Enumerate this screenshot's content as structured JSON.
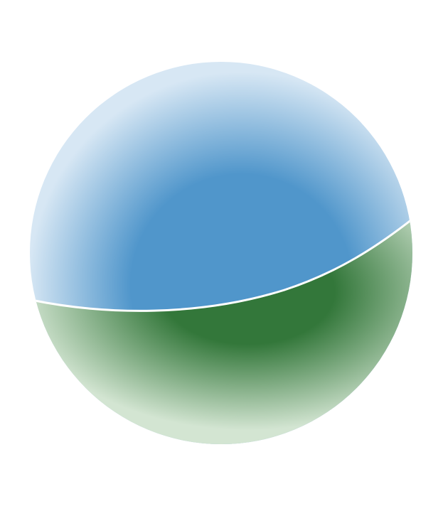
{
  "graphic": {
    "name": "spherical-split-emblem",
    "colors": {
      "background": "#ffffff",
      "upper_region_core": "#5096cb",
      "upper_region_edge": "#d7e7f4",
      "lower_region_core": "#33773a",
      "lower_region_edge": "#d3e5d2",
      "divider_line": "#ffffff"
    }
  }
}
